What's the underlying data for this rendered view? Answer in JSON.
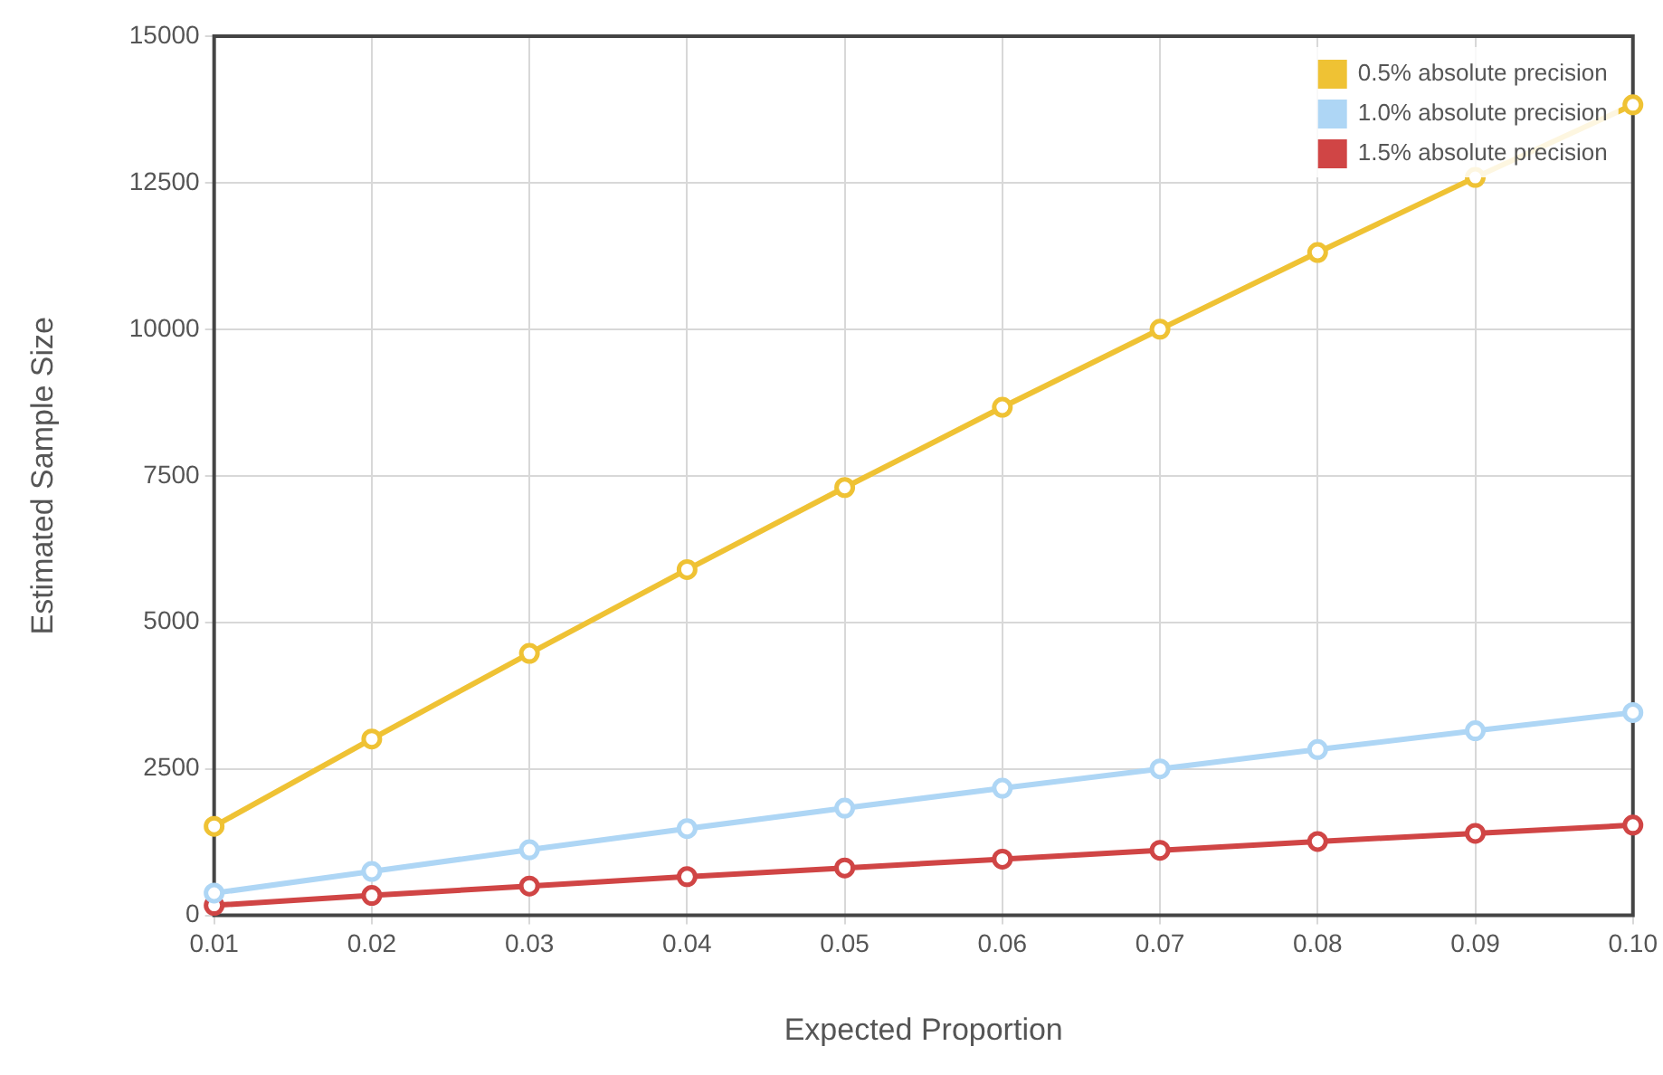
{
  "chart_data": {
    "type": "line",
    "xlabel": "Expected Proportion",
    "ylabel": "Estimated Sample Size",
    "x": [
      0.01,
      0.02,
      0.03,
      0.04,
      0.05,
      0.06,
      0.07,
      0.08,
      0.09,
      0.1
    ],
    "series": [
      {
        "name": "0.5% absolute precision",
        "color": "#efc234",
        "values": [
          1520,
          3010,
          4470,
          5900,
          7300,
          8670,
          10000,
          11310,
          12590,
          13830
        ]
      },
      {
        "name": "1.0% absolute precision",
        "color": "#aed6f5",
        "values": [
          380,
          750,
          1120,
          1480,
          1830,
          2170,
          2500,
          2830,
          3150,
          3460
        ]
      },
      {
        "name": "1.5% absolute precision",
        "color": "#d04545",
        "values": [
          170,
          340,
          500,
          660,
          810,
          960,
          1110,
          1260,
          1400,
          1540
        ]
      }
    ],
    "xlim": [
      0.01,
      0.1
    ],
    "xticks": [
      0.01,
      0.02,
      0.03,
      0.04,
      0.05,
      0.06,
      0.07,
      0.08,
      0.09,
      {
        "value": 0.1,
        "label": "0.10"
      }
    ],
    "ylim": [
      0,
      15000
    ],
    "yticks": [
      0,
      2500,
      5000,
      7500,
      10000,
      12500,
      15000
    ],
    "grid": true,
    "legend": "top right",
    "marker": "circle",
    "line_style": "solid"
  }
}
